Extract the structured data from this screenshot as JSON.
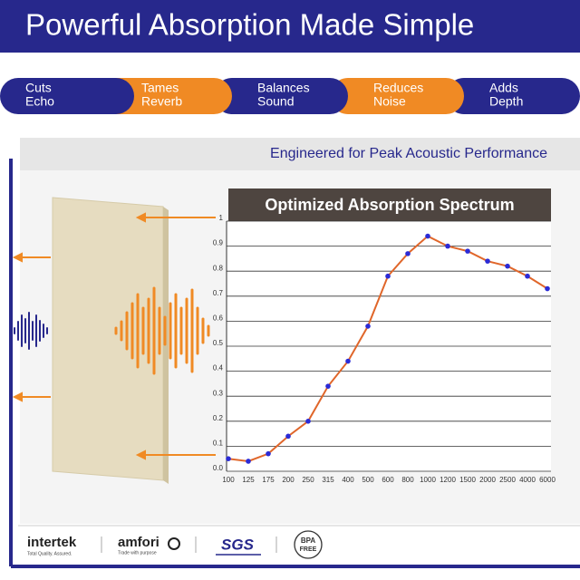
{
  "header": {
    "title": "Powerful Absorption Made Simple"
  },
  "features": [
    {
      "lines": [
        "Cuts",
        "Echo"
      ]
    },
    {
      "lines": [
        "Tames",
        "Reverb"
      ]
    },
    {
      "lines": [
        "Balances",
        "Sound"
      ]
    },
    {
      "lines": [
        "Reduces",
        "Noise"
      ]
    },
    {
      "lines": [
        "Adds",
        "Depth"
      ]
    }
  ],
  "subtitle": "Engineered for Peak Acoustic Performance",
  "chart_data": {
    "type": "line",
    "title": "Optimized Absorption Spectrum",
    "categories": [
      "100",
      "125",
      "175",
      "200",
      "250",
      "315",
      "400",
      "500",
      "600",
      "800",
      "1000",
      "1200",
      "1500",
      "2000",
      "2500",
      "4000",
      "6000"
    ],
    "series": [
      {
        "name": "Absorption",
        "color": "#e0662a",
        "marker_color": "#2b2bd6",
        "values": [
          0.05,
          0.04,
          0.07,
          0.14,
          0.2,
          0.34,
          0.44,
          0.58,
          0.78,
          0.87,
          0.94,
          0.9,
          0.88,
          0.84,
          0.82,
          0.78,
          0.73
        ]
      }
    ],
    "ylim": [
      0,
      1
    ],
    "yticks": [
      {
        "value": 0,
        "label": "0.0"
      },
      0.1,
      0.2,
      0.3,
      0.4,
      0.5,
      0.6,
      0.7,
      0.8,
      0.9,
      1
    ],
    "grid": true
  },
  "logos": {
    "intertek": "intertek",
    "intertek_tagline": "Total Quality. Assured.",
    "amfori": "amfori",
    "amfori_tagline": "Trade with purpose",
    "sgs": "SGS",
    "bpa": [
      "BPA",
      "FREE"
    ]
  }
}
